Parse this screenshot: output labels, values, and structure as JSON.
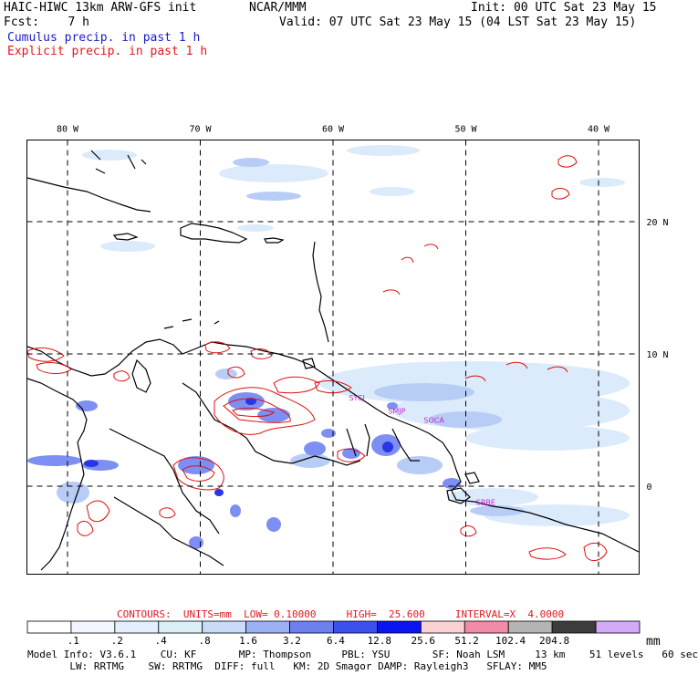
{
  "header": {
    "title_left": "HAIC-HIWC 13km ARW-GFS init",
    "title_center": "NCAR/MMM",
    "init": "Init: 00 UTC Sat 23 May 15",
    "fcst": "Fcst:    7 h",
    "valid": "Valid: 07 UTC Sat 23 May 15 (04 LST Sat 23 May 15)",
    "legend_cumulus": "Cumulus precip. in past 1 h",
    "legend_explicit": "Explicit precip. in past 1 h"
  },
  "map": {
    "lon_labels": [
      {
        "lon": -80,
        "text": "80 W"
      },
      {
        "lon": -70,
        "text": "70 W"
      },
      {
        "lon": -60,
        "text": "60 W"
      },
      {
        "lon": -50,
        "text": "50 W"
      },
      {
        "lon": -40,
        "text": "40 W"
      }
    ],
    "lat_labels": [
      {
        "lat": 20,
        "text": "20 N"
      },
      {
        "lat": 10,
        "text": "10 N"
      },
      {
        "lat": 0,
        "text": "0"
      }
    ],
    "stations": [
      {
        "name": "SYCJ",
        "lon": -58.2,
        "lat": 6.5
      },
      {
        "name": "SMJP",
        "lon": -55.2,
        "lat": 5.5
      },
      {
        "name": "SOCA",
        "lon": -52.4,
        "lat": 4.8
      },
      {
        "name": "SBBE",
        "lon": -48.5,
        "lat": -1.4
      }
    ]
  },
  "contours": {
    "label": "CONTOURS:  UNITS=mm  LOW= 0.10000     HIGH=  25.600     INTERVAL=X  4.0000"
  },
  "colorbar": {
    "unit": "mm",
    "tick_labels": [
      ".1",
      ".2",
      ".4",
      ".8",
      "1.6",
      "3.2",
      "6.4",
      "12.8",
      "25.6",
      "51.2",
      "102.4",
      "204.8"
    ],
    "colors": [
      "#ffffff",
      "#f2f6ff",
      "#e3eeff",
      "#daf0f8",
      "#c8dcfa",
      "#9cb0f4",
      "#6e80f0",
      "#3c50ec",
      "#0a14ee",
      "#fad2d6",
      "#f08caa",
      "#b4b4b4",
      "#3c3c3c",
      "#d2aaf6"
    ]
  },
  "footer": {
    "line1": "Model Info: V3.6.1    CU: KF       MP: Thompson     PBL: YSU       SF: Noah LSM     13 km    51 levels   60 sec",
    "line2": "       LW: RRTMG    SW: RRTMG  DIFF: full   KM: 2D Smagor DAMP: Rayleigh3   SFLAY: MM5"
  },
  "colors": {
    "cumulus_text": "#1a1acc",
    "explicit_text": "#e0181e",
    "station_text": "#cc20cc",
    "contour_line": "#dd1111"
  }
}
